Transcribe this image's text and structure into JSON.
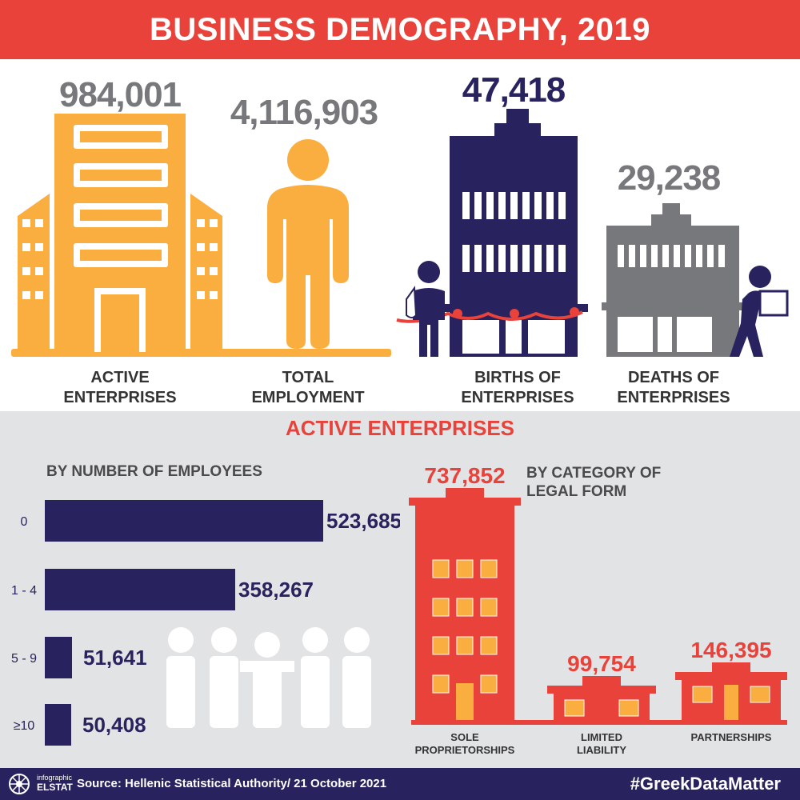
{
  "header": {
    "title": "BUSINESS DEMOGRAPHY, 2019"
  },
  "kpis": [
    {
      "value": "984,001",
      "label_line1": "ACTIVE",
      "label_line2": "ENTERPRISES"
    },
    {
      "value": "4,116,903",
      "label_line1": "TOTAL",
      "label_line2": "EMPLOYMENT"
    },
    {
      "value": "47,418",
      "label_line1": "BIRTHS OF",
      "label_line2": "ENTERPRISES"
    },
    {
      "value": "29,238",
      "label_line1": "DEATHS OF",
      "label_line2": "ENTERPRISES"
    }
  ],
  "section": {
    "title": "ACTIVE ENTERPRISES"
  },
  "colors": {
    "red": "#e8423a",
    "navy": "#28235e",
    "orange": "#f9ae3f",
    "grey": "#77787b",
    "panel": "#e2e3e5"
  },
  "chart_data": [
    {
      "type": "bar",
      "orientation": "horizontal",
      "title": "BY NUMBER OF EMPLOYEES",
      "categories": [
        "0",
        "1 - 4",
        "5 - 9",
        "≥10"
      ],
      "values": [
        523685,
        358267,
        51641,
        50408
      ],
      "value_labels": [
        "523,685",
        "358,267",
        "51,641",
        "50,408"
      ]
    },
    {
      "type": "bar",
      "title_line1": "BY CATEGORY OF",
      "title_line2": "LEGAL FORM",
      "categories": [
        {
          "line1": "SOLE",
          "line2": "PROPRIETORSHIPS"
        },
        {
          "line1": "LIMITED",
          "line2": "LIABILITY"
        },
        {
          "line1": "PARTNERSHIPS",
          "line2": ""
        }
      ],
      "values": [
        737852,
        99754,
        146395
      ],
      "value_labels": [
        "737,852",
        "99,754",
        "146,395"
      ]
    }
  ],
  "footer": {
    "logo_line1": "infographic",
    "logo_line2": "ELSTAT",
    "source": "Source: Hellenic Statistical Authority/ 21 October 2021",
    "hashtag": "#GreekDataMatter"
  }
}
